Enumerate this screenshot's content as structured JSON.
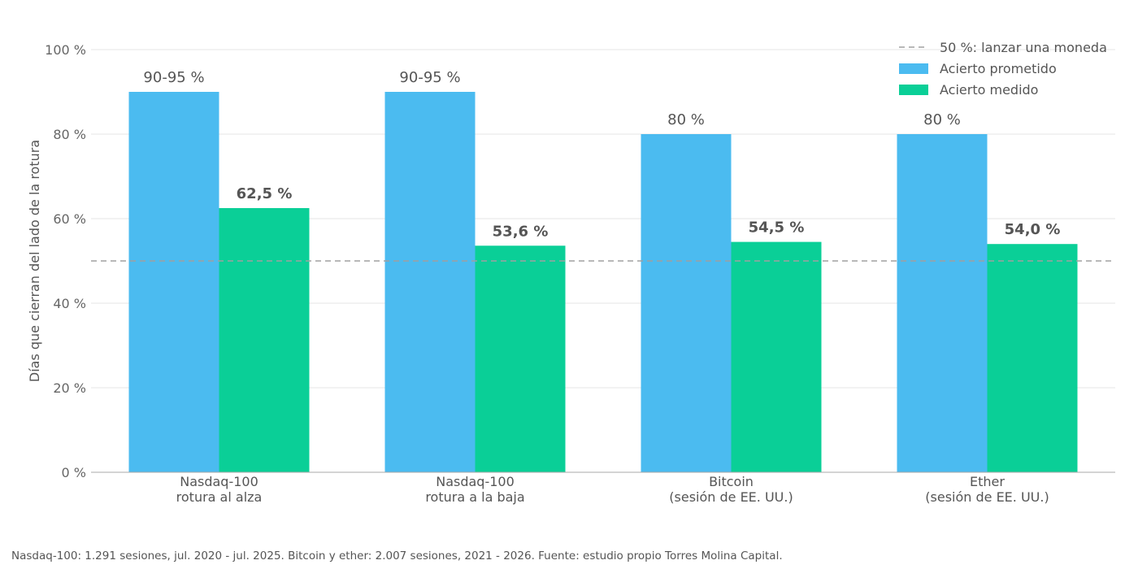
{
  "chart_data": {
    "type": "bar",
    "title": "",
    "ylabel": "Días que cierran del lado de la rotura",
    "xlabel": "",
    "ylim": [
      0,
      100
    ],
    "yticks": [
      0,
      20,
      40,
      60,
      80,
      100
    ],
    "ytick_labels": [
      "0 %",
      "20 %",
      "40 %",
      "60 %",
      "80 %",
      "100 %"
    ],
    "categories": [
      [
        "Nasdaq-100",
        "rotura al alza"
      ],
      [
        "Nasdaq-100",
        "rotura a la baja"
      ],
      [
        "Bitcoin",
        "(sesión de EE. UU.)"
      ],
      [
        "Ether",
        "(sesión de EE. UU.)"
      ]
    ],
    "series": [
      {
        "name": "Acierto prometido",
        "color": "#4BBBF0",
        "values": [
          90,
          90,
          80,
          80
        ],
        "labels": [
          "90-95 %",
          "90-95 %",
          "80 %",
          "80 %"
        ]
      },
      {
        "name": "Acierto medido",
        "color": "#0ACF97",
        "values": [
          62.5,
          53.6,
          54.5,
          54.0
        ],
        "labels": [
          "62,5 %",
          "53,6 %",
          "54,5 %",
          "54,0 %"
        ]
      }
    ],
    "reference_line": {
      "value": 50,
      "label": "50 %: lanzar una moneda",
      "color": "#A0A0A0",
      "style": "dashed"
    },
    "legend_position": "top-right",
    "grid": true
  },
  "footnote": "Nasdaq-100: 1.291 sesiones, jul. 2020 - jul. 2025. Bitcoin y ether: 2.007 sesiones, 2021 - 2026. Fuente: estudio propio Torres Molina Capital."
}
